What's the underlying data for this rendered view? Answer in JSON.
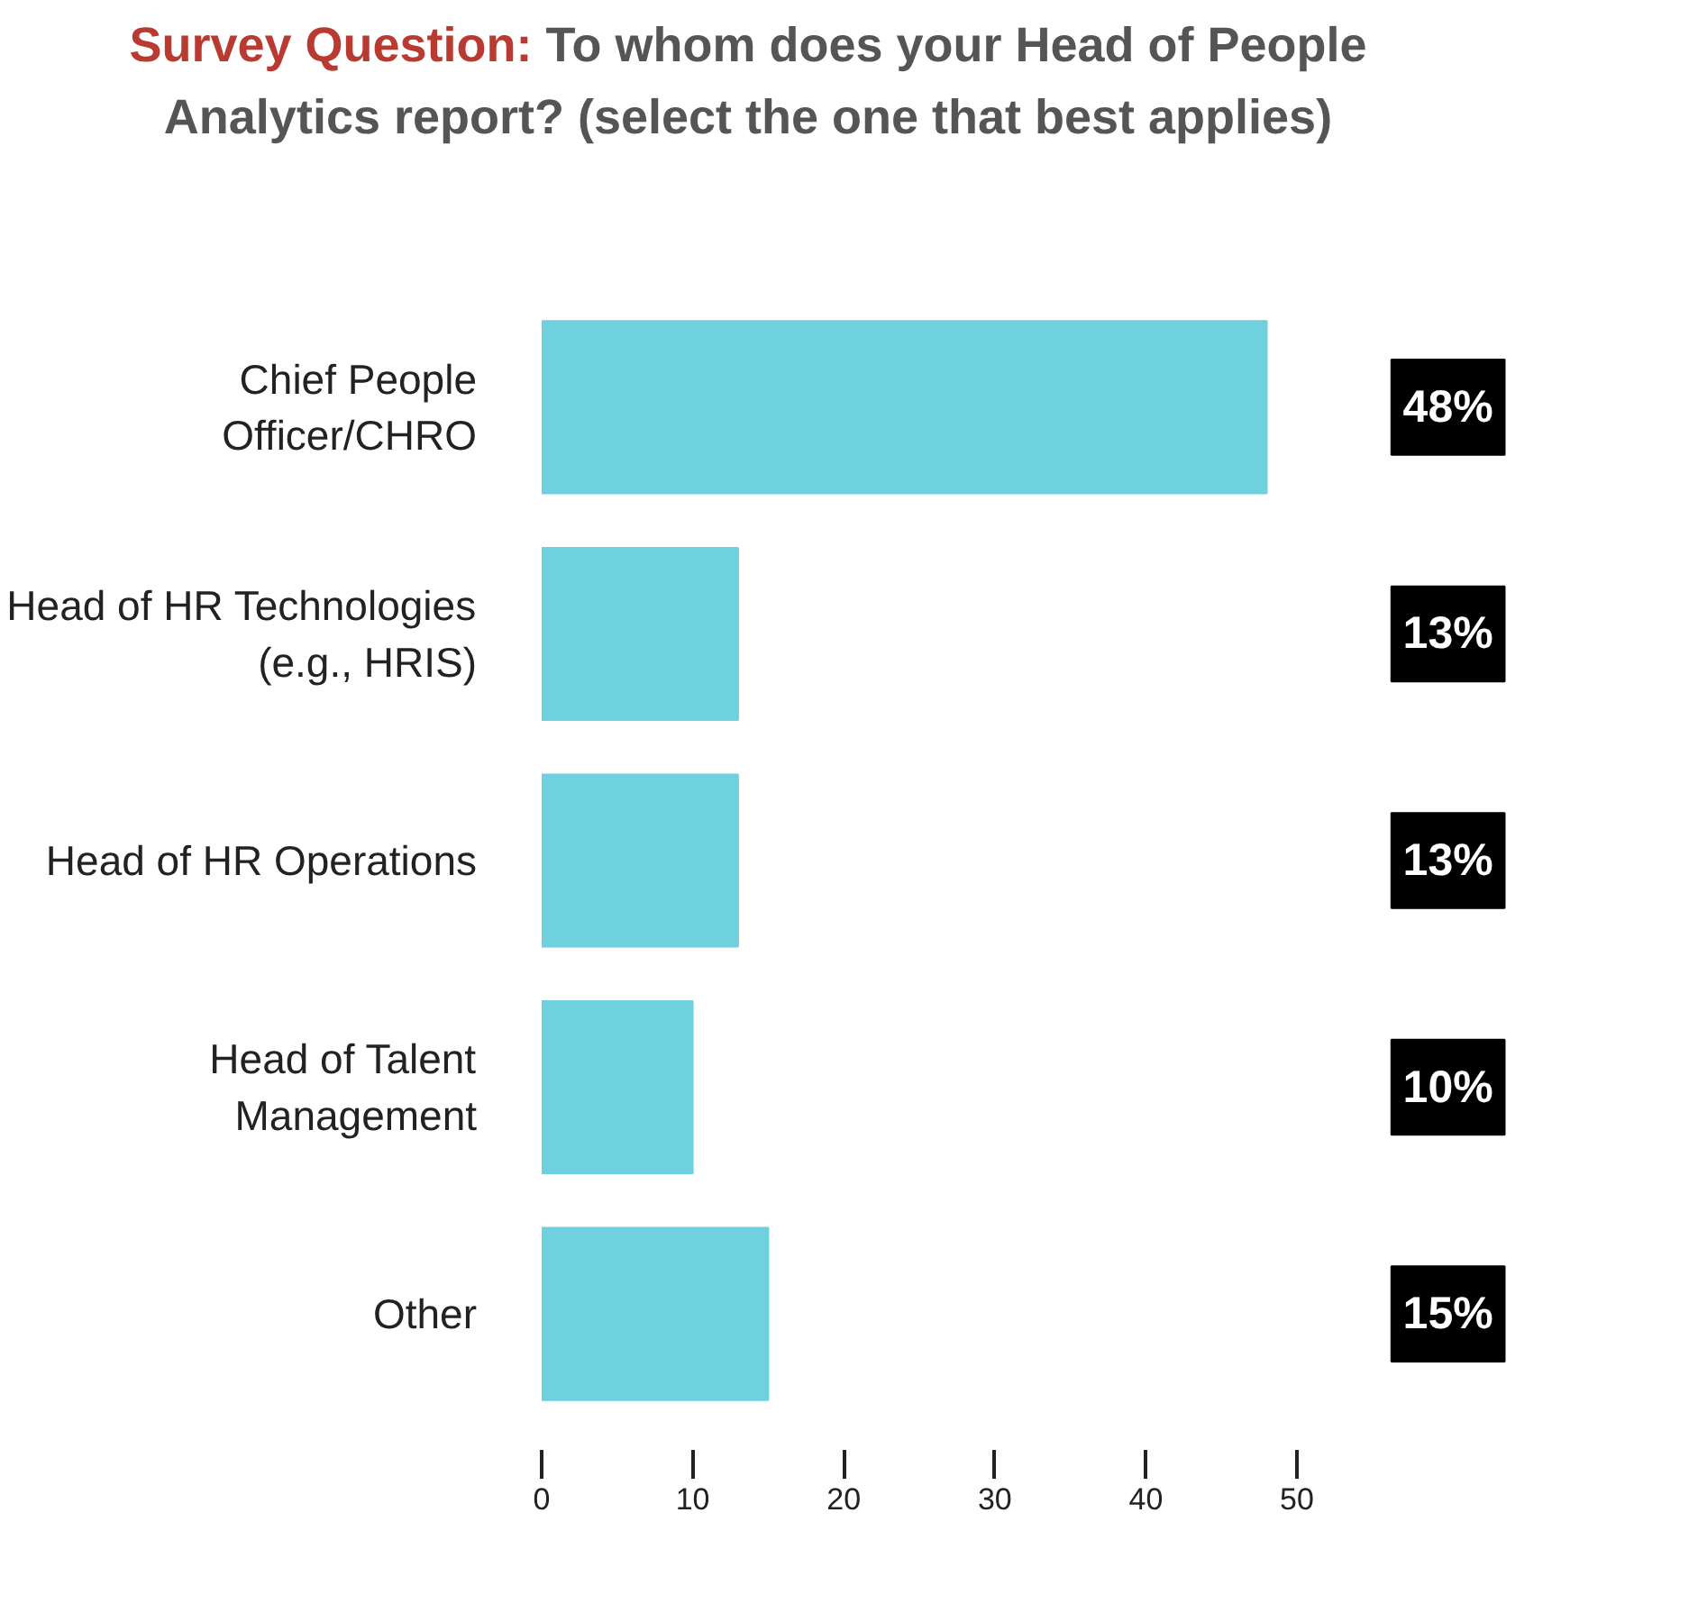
{
  "chart_data": {
    "type": "bar",
    "orientation": "horizontal",
    "title": "Survey Question: To whom does your Head of People Analytics report? (select the one that best applies)",
    "categories": [
      "Chief People Officer/CHRO",
      "Head of HR Technologies (e.g., HRIS)",
      "Head of HR Operations",
      "Head of Talent Management",
      "Other"
    ],
    "values": [
      48,
      13,
      13,
      10,
      15
    ],
    "value_labels": [
      "48%",
      "13%",
      "13%",
      "10%",
      "15%"
    ],
    "color": "#6fd0de",
    "xlim": [
      0,
      50
    ],
    "xticks": [
      0,
      10,
      20,
      30,
      40,
      50
    ],
    "grid": false
  }
}
